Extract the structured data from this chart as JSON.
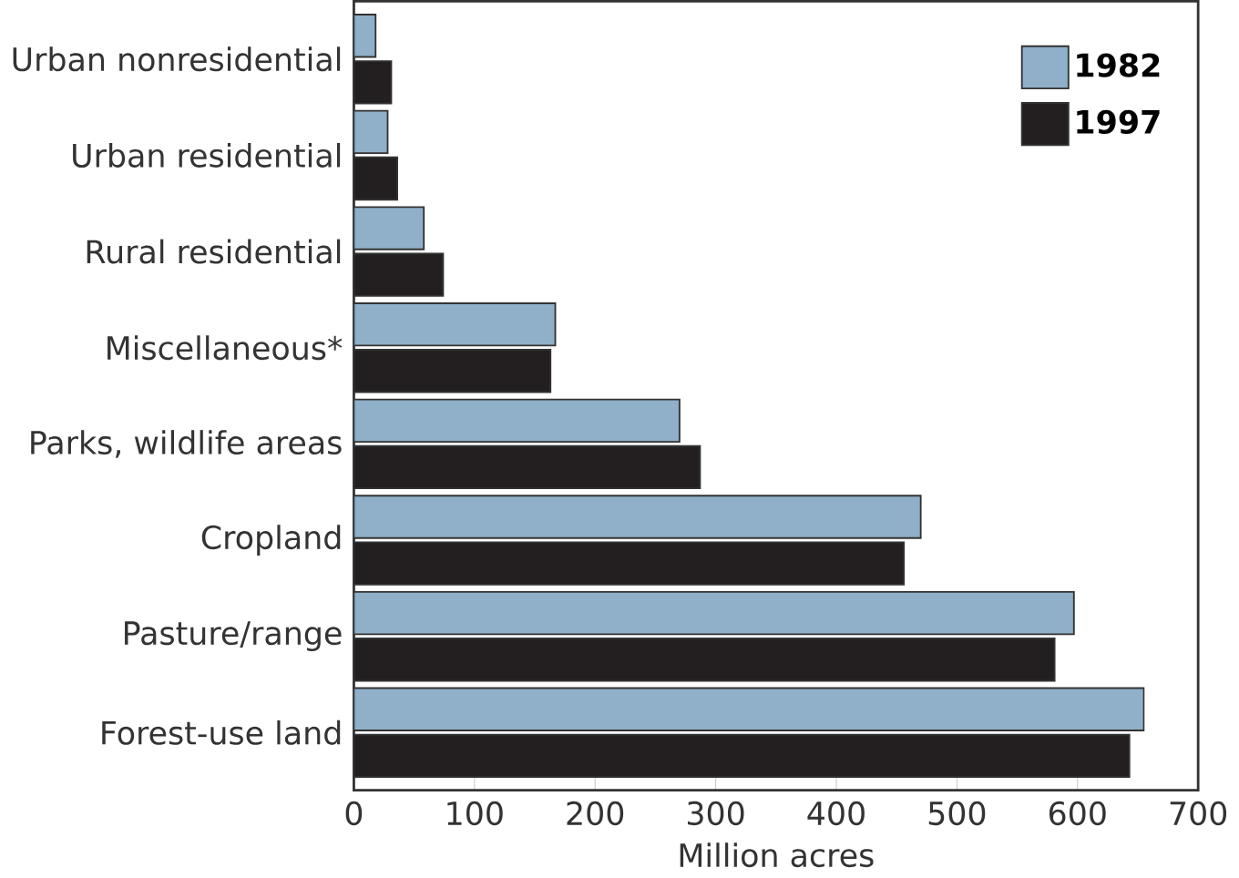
{
  "chart_data": {
    "type": "bar",
    "orientation": "horizontal",
    "xlabel": "Million acres",
    "categories": [
      "Urban nonresidential",
      "Urban residential",
      "Rural residential",
      "Miscellaneous*",
      "Parks, wildlife areas",
      "Cropland",
      "Pasture/range",
      "Forest-use land"
    ],
    "series": [
      {
        "name": "1982",
        "color": "#8fb0c8",
        "values": [
          18,
          28,
          58,
          167,
          270,
          470,
          597,
          655
        ]
      },
      {
        "name": "1997",
        "color": "#231f20",
        "values": [
          31,
          36,
          74,
          163,
          287,
          456,
          581,
          643
        ]
      }
    ],
    "xlim": [
      0,
      700
    ],
    "xticks": [
      0,
      100,
      200,
      300,
      400,
      500,
      600,
      700
    ],
    "legend": "top right"
  }
}
